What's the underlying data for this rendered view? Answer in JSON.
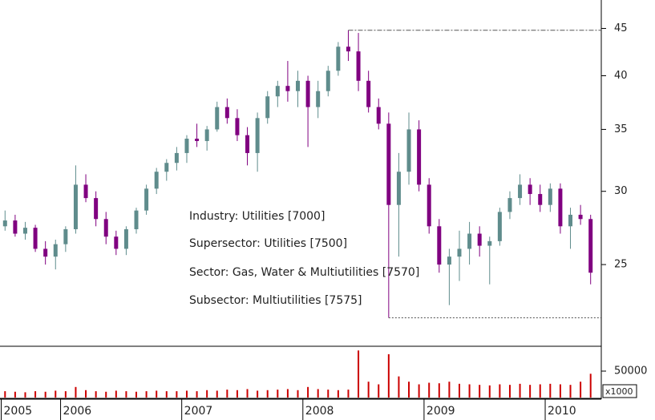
{
  "chart_data": {
    "type": "candlestick",
    "yscale": "log",
    "categories": [
      "2005",
      null,
      null,
      null,
      null,
      null,
      "2006",
      null,
      null,
      null,
      null,
      null,
      null,
      null,
      null,
      null,
      null,
      null,
      "2007",
      null,
      null,
      null,
      null,
      null,
      null,
      null,
      null,
      null,
      null,
      null,
      "2008",
      null,
      null,
      null,
      null,
      null,
      null,
      null,
      null,
      null,
      null,
      null,
      "2009",
      null,
      null,
      null,
      null,
      null,
      null,
      null,
      null,
      null,
      null,
      null,
      "2010",
      null,
      null,
      null,
      null
    ],
    "open": [
      27.5,
      27.9,
      27.0,
      27.4,
      26.0,
      25.5,
      26.3,
      27.3,
      30.5,
      29.5,
      28.0,
      26.8,
      26.0,
      27.3,
      28.6,
      30.2,
      31.5,
      32.2,
      33.0,
      34.2,
      34.0,
      35.0,
      37.0,
      36.0,
      34.5,
      33.0,
      36.0,
      38.0,
      39.0,
      38.5,
      39.5,
      37.0,
      38.5,
      40.5,
      43.0,
      42.5,
      39.5,
      37.0,
      35.5,
      29.0,
      31.5,
      35.0,
      30.5,
      27.5,
      25.0,
      25.5,
      26.0,
      27.0,
      26.2,
      26.5,
      28.5,
      29.5,
      30.5,
      29.8,
      29.0,
      30.2,
      27.5,
      28.3,
      28.0
    ],
    "high": [
      28.6,
      28.3,
      27.8,
      27.6,
      26.5,
      26.6,
      27.5,
      32.0,
      31.3,
      30.0,
      28.5,
      27.2,
      27.5,
      28.8,
      30.5,
      31.8,
      32.5,
      33.5,
      34.5,
      35.5,
      35.3,
      37.5,
      37.8,
      36.8,
      35.2,
      36.5,
      38.5,
      39.5,
      41.5,
      40.5,
      40.0,
      39.5,
      41.0,
      43.5,
      44.8,
      44.5,
      40.5,
      37.8,
      36.5,
      33.0,
      36.5,
      35.8,
      31.0,
      28.0,
      26.0,
      27.2,
      27.8,
      27.5,
      26.8,
      28.8,
      30.0,
      31.3,
      31.0,
      30.5,
      30.6,
      30.6,
      28.8,
      29.0,
      28.3
    ],
    "low": [
      27.2,
      26.8,
      26.6,
      25.8,
      25.0,
      24.7,
      25.8,
      27.0,
      29.2,
      27.5,
      26.3,
      25.6,
      25.6,
      27.0,
      28.3,
      29.8,
      30.8,
      31.6,
      32.2,
      33.5,
      33.2,
      34.8,
      35.5,
      34.0,
      32.0,
      31.5,
      35.5,
      37.0,
      37.5,
      37.0,
      33.5,
      36.0,
      38.0,
      40.0,
      41.5,
      38.5,
      36.5,
      35.0,
      21.9,
      25.5,
      30.5,
      30.0,
      27.0,
      24.5,
      22.6,
      24.0,
      25.0,
      25.5,
      23.8,
      26.2,
      28.0,
      29.0,
      29.0,
      28.5,
      28.5,
      27.0,
      26.0,
      27.6,
      23.8
    ],
    "close": [
      27.9,
      27.0,
      27.4,
      26.0,
      25.5,
      26.3,
      27.3,
      30.5,
      29.5,
      28.0,
      26.8,
      26.0,
      27.3,
      28.6,
      30.2,
      31.5,
      32.2,
      33.0,
      34.2,
      34.0,
      35.0,
      37.0,
      36.0,
      34.5,
      33.0,
      36.0,
      38.0,
      39.0,
      38.5,
      39.5,
      37.0,
      38.5,
      40.5,
      43.0,
      42.5,
      39.5,
      37.0,
      35.5,
      29.0,
      31.5,
      35.0,
      30.5,
      27.5,
      25.0,
      25.5,
      26.0,
      27.0,
      26.2,
      26.5,
      28.5,
      29.5,
      30.5,
      29.8,
      29.0,
      30.2,
      27.5,
      28.3,
      28.0,
      24.5
    ],
    "up_color": "#5f8c8c",
    "down_color": "#800080",
    "ylim": [
      20.4,
      48.3
    ],
    "yticks": [
      25,
      30,
      35,
      40,
      45
    ],
    "range_lines": true,
    "annotations": [
      "Industry: Utilities [7000]",
      "Supersector: Utilities [7500]",
      "Sector: Gas, Water & Multiutilities [7570]",
      "Subsector: Multiutilities [7575]"
    ],
    "volume": {
      "values": [
        12000,
        11000,
        10000,
        12000,
        11000,
        13000,
        12000,
        20000,
        14000,
        12000,
        11000,
        13000,
        12000,
        11000,
        12000,
        13000,
        12000,
        12000,
        13000,
        12000,
        14000,
        13000,
        15000,
        14000,
        16000,
        13000,
        14000,
        15000,
        16000,
        14000,
        20000,
        16000,
        15000,
        14000,
        15000,
        89000,
        30000,
        25000,
        82000,
        40000,
        30000,
        25000,
        28000,
        27000,
        30000,
        26000,
        25000,
        24000,
        23000,
        25000,
        24000,
        26000,
        24000,
        25000,
        26000,
        25000,
        24000,
        30000,
        45000
      ],
      "color": "#cc0000",
      "ylim": [
        0,
        97000
      ],
      "yticks": [
        50000
      ],
      "unit": "x1000"
    }
  }
}
